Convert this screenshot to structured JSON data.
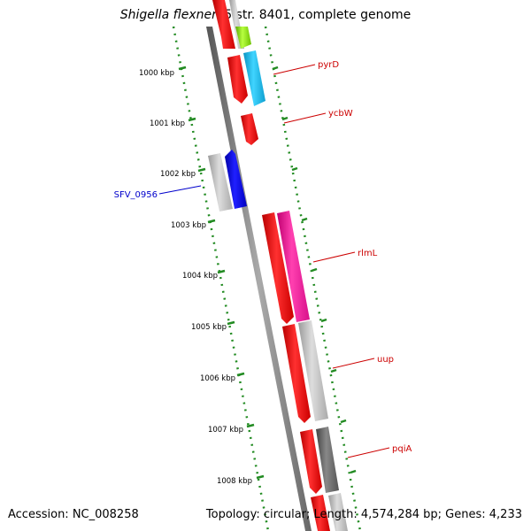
{
  "title": {
    "organism": "Shigella flexneri",
    "strain": " 5 str. 8401, complete genome"
  },
  "scale_labels": [
    "1000 kbp",
    "1001 kbp",
    "1002 kbp",
    "1003 kbp",
    "1004 kbp",
    "1005 kbp",
    "1006 kbp",
    "1007 kbp",
    "1008 kbp"
  ],
  "gene_labels": [
    {
      "name": "pyrD",
      "color": "#cc0000"
    },
    {
      "name": "ycbW",
      "color": "#cc0000"
    },
    {
      "name": "SFV_0956",
      "color": "#0000cc"
    },
    {
      "name": "rlmL",
      "color": "#cc0000"
    },
    {
      "name": "uup",
      "color": "#cc0000"
    },
    {
      "name": "pqiA",
      "color": "#cc0000"
    }
  ],
  "footer": {
    "accession": "Accession: NC_008258",
    "summary": "Topology: circular; Length: 4,574,284 bp; Genes: 4,233"
  },
  "colors": {
    "backbone": "#888888",
    "scale": "#228b22",
    "cds_red": "#ee0000",
    "cds_cyan": "#11b7e8",
    "cds_blue": "#0000ee",
    "cds_magenta": "#ee1198",
    "cds_gray": "#bbbbbb",
    "cds_darkgray": "#666666",
    "cds_green": "#7fd400"
  }
}
